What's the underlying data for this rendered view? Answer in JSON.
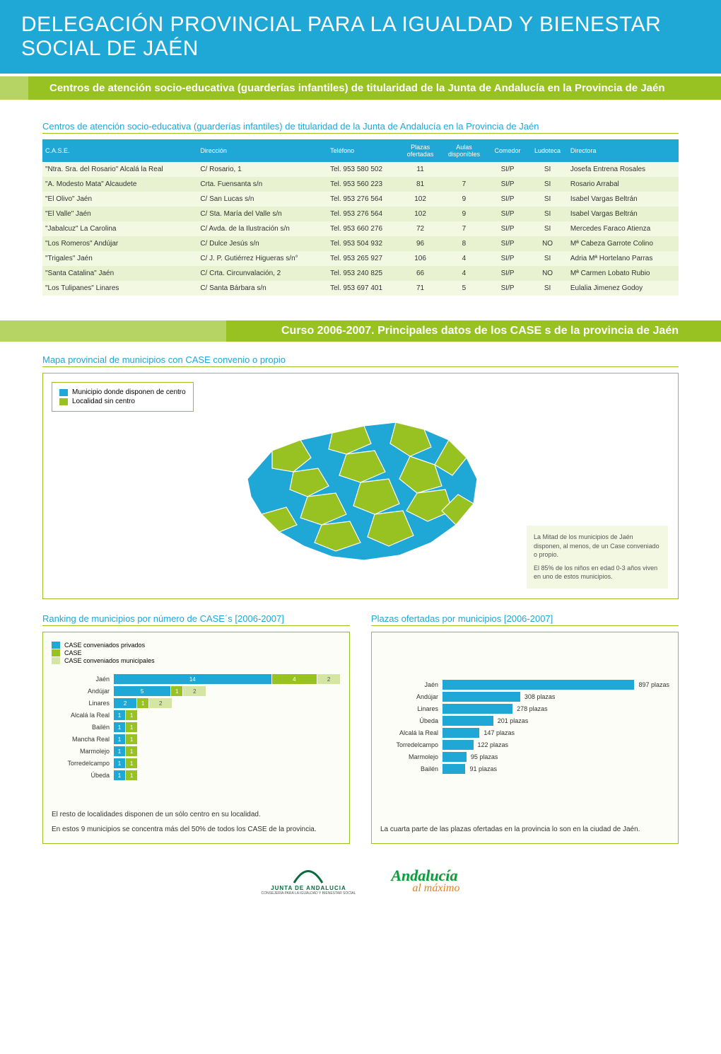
{
  "colors": {
    "blue": "#1fa7d6",
    "green": "#97c221",
    "lightgreen": "#b5d463",
    "palegreen1": "#f3f8e3",
    "palegreen2": "#e9f2d0",
    "seg_priv": "#1fa7d6",
    "seg_case": "#97c221",
    "seg_muni": "#d5e6a3"
  },
  "header": {
    "title": "DELEGACIÓN PROVINCIAL PARA LA IGUALDAD Y BIENESTAR SOCIAL DE JAÉN",
    "subtitle": "Centros de atención socio-educativa (guarderías infantiles) de titularidad de la Junta de Andalucía en la Provincia de Jaén"
  },
  "table_title": "Centros de atención socio-educativa (guarderías infantiles) de titularidad de la Junta de Andalucía en la Provincia de Jaén",
  "table_columns": [
    "C.A.S.E.",
    "Dirección",
    "Teléfono",
    "Plazas ofertadas",
    "Aulas disponibles",
    "Comedor",
    "Ludoteca",
    "Directora"
  ],
  "table_rows": [
    [
      "\"Ntra. Sra. del Rosario\" Alcalá la Real",
      "C/ Rosario, 1",
      "Tel. 953 580 502",
      "11",
      "",
      "SI/P",
      "SI",
      "Josefa Entrena Rosales"
    ],
    [
      "\"A. Modesto Mata\" Alcaudete",
      "Crta. Fuensanta s/n",
      "Tel. 953 560 223",
      "81",
      "7",
      "SI/P",
      "SI",
      "Rosario Arrabal"
    ],
    [
      "\"El Olivo\" Jaén",
      "C/ San Lucas s/n",
      "Tel. 953 276 564",
      "102",
      "9",
      "SI/P",
      "SI",
      "Isabel Vargas Beltrán"
    ],
    [
      "\"El Valle\" Jaén",
      "C/ Sta. María del Valle s/n",
      "Tel. 953 276 564",
      "102",
      "9",
      "SI/P",
      "SI",
      "Isabel Vargas Beltrán"
    ],
    [
      "\"Jabalcuz\" La Carolina",
      "C/ Avda. de la Ilustración s/n",
      "Tel. 953 660 276",
      "72",
      "7",
      "SI/P",
      "SI",
      "Mercedes Faraco Atienza"
    ],
    [
      "\"Los Romeros\" Andújar",
      "C/ Dulce Jesús s/n",
      "Tel. 953 504 932",
      "96",
      "8",
      "SI/P",
      "NO",
      "Mª Cabeza Garrote Colino"
    ],
    [
      "\"Trigales\" Jaén",
      "C/ J. P. Gutiérrez Higueras s/n°",
      "Tel. 953 265 927",
      "106",
      "4",
      "SI/P",
      "SI",
      "Adria Mª Hortelano Parras"
    ],
    [
      "\"Santa Catalina\" Jaén",
      "C/ Crta. Circunvalación, 2",
      "Tel. 953 240 825",
      "66",
      "4",
      "SI/P",
      "NO",
      "Mª Carmen Lobato Rubio"
    ],
    [
      "\"Los Tulipanes\" Linares",
      "C/ Santa Bárbara s/n",
      "Tel. 953 697 401",
      "71",
      "5",
      "SI/P",
      "SI",
      "Eulalia Jimenez Godoy"
    ]
  ],
  "mid_bar": "Curso 2006-2007. Principales datos de los CASE s de la provincia de Jaén",
  "map": {
    "title": "Mapa provincial de municipios con CASE convenio o propio",
    "legend_with": "Municipio donde disponen de centro",
    "legend_without": "Localidad sin centro",
    "info1": "La Mitad de los municipios de Jaén disponen, al menos, de un Case conveniado o propio.",
    "info2": "El 85% de los niños en edad 0-3 años viven en uno de estos municipios."
  },
  "ranking": {
    "title": "Ranking de municipios por número de CASE´s  [2006-2007]",
    "legend": [
      "CASE conveniados privados",
      "CASE",
      "CASE conveniados municipales"
    ],
    "legend_colors": [
      "#1fa7d6",
      "#97c221",
      "#d5e6a3"
    ],
    "scale_max": 20,
    "rows": [
      {
        "name": "Jaén",
        "segs": [
          14,
          4,
          2
        ]
      },
      {
        "name": "Andújar",
        "segs": [
          5,
          1,
          2
        ]
      },
      {
        "name": "Linares",
        "segs": [
          2,
          1,
          2
        ]
      },
      {
        "name": "Alcalá la Real",
        "segs": [
          1,
          1,
          0
        ]
      },
      {
        "name": "Bailén",
        "segs": [
          1,
          1,
          0
        ]
      },
      {
        "name": "Mancha Real",
        "segs": [
          1,
          1,
          0
        ]
      },
      {
        "name": "Marmolejo",
        "segs": [
          1,
          1,
          0
        ]
      },
      {
        "name": "Torredelcampo",
        "segs": [
          1,
          1,
          0
        ]
      },
      {
        "name": "Úbeda",
        "segs": [
          1,
          1,
          0
        ]
      }
    ],
    "caption1": "El resto de localidades  disponen de  un sólo centro en su localidad.",
    "caption2": "En estos 9 municipios se concentra más del 50% de todos los CASE de la provincia."
  },
  "plazas": {
    "title": "Plazas ofertadas por municipios  [2006-2007]",
    "scale_max": 900,
    "rows": [
      {
        "name": "Jaén",
        "value": 897
      },
      {
        "name": "Andújar",
        "value": 308
      },
      {
        "name": "Linares",
        "value": 278
      },
      {
        "name": "Úbeda",
        "value": 201
      },
      {
        "name": "Alcalá la Real",
        "value": 147
      },
      {
        "name": "Torredelcampo",
        "value": 122
      },
      {
        "name": "Marmolejo",
        "value": 95
      },
      {
        "name": "Bailén",
        "value": 91
      }
    ],
    "caption": "La cuarta parte de las plazas ofertadas en la provincia  lo son en la ciudad de Jaén."
  },
  "footer": {
    "junta": "JUNTA DE ANDALUCIA",
    "junta_sub": "CONSEJERÍA PARA LA IGUALDAD Y BIENESTAR SOCIAL",
    "and1": "Andalucía",
    "and2": "al máximo"
  }
}
